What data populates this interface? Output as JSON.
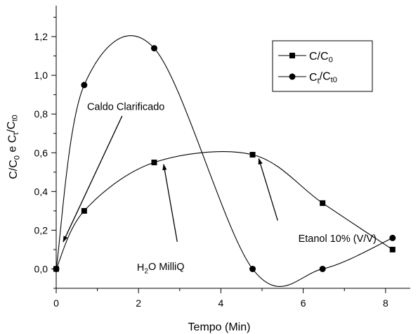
{
  "chart_data": {
    "type": "scatter",
    "xlabel": "Tempo (Min)",
    "ylabel": {
      "parts": [
        {
          "text": "C/C",
          "role": "base"
        },
        {
          "text": "0",
          "role": "sub"
        },
        {
          "text": " e C",
          "role": "base"
        },
        {
          "text": "t",
          "role": "sub"
        },
        {
          "text": "/C",
          "role": "base"
        },
        {
          "text": "t0",
          "role": "sub"
        }
      ]
    },
    "xlim": [
      0,
      8.6
    ],
    "ylim": [
      -0.1,
      1.36
    ],
    "x_ticks": [
      {
        "value": 0,
        "label": "0"
      },
      {
        "value": 2,
        "label": "2"
      },
      {
        "value": 4,
        "label": "4"
      },
      {
        "value": 6,
        "label": "6"
      },
      {
        "value": 8,
        "label": "8"
      }
    ],
    "y_ticks": [
      {
        "value": 0.0,
        "label": "0,0"
      },
      {
        "value": 0.2,
        "label": "0,2"
      },
      {
        "value": 0.4,
        "label": "0,4"
      },
      {
        "value": 0.6,
        "label": "0,6"
      },
      {
        "value": 0.8,
        "label": "0,8"
      },
      {
        "value": 1.0,
        "label": "1,0"
      },
      {
        "value": 1.2,
        "label": "1,2"
      }
    ],
    "series": [
      {
        "key": "c-c0",
        "marker": "square",
        "legend": [
          {
            "text": "C/C",
            "role": "base"
          },
          {
            "text": "0",
            "role": "sub"
          }
        ],
        "x": [
          0,
          0.68,
          2.38,
          4.77,
          6.47,
          8.17
        ],
        "y": [
          0.0,
          0.3,
          0.55,
          0.59,
          0.34,
          0.1
        ]
      },
      {
        "key": "ct-ct0",
        "marker": "circle",
        "legend": [
          {
            "text": "C",
            "role": "base"
          },
          {
            "text": "t",
            "role": "sub"
          },
          {
            "text": "/C",
            "role": "base"
          },
          {
            "text": "t0",
            "role": "sub"
          }
        ],
        "x": [
          0,
          0.68,
          2.38,
          4.77,
          6.47,
          8.17
        ],
        "y": [
          0.0,
          0.95,
          1.14,
          0.0,
          0.0,
          0.16
        ]
      }
    ],
    "annotations": [
      {
        "key": "caldo",
        "parts": [
          {
            "text": "Caldo Clarificado",
            "role": "base"
          }
        ],
        "text_at": [
          0.75,
          0.82
        ],
        "from": [
          1.6,
          0.79
        ],
        "to": [
          0.17,
          0.14
        ]
      },
      {
        "key": "h2o",
        "parts": [
          {
            "text": "H",
            "role": "base"
          },
          {
            "text": "2",
            "role": "sub"
          },
          {
            "text": "O MilliQ",
            "role": "base"
          }
        ],
        "text_at": [
          1.96,
          -0.01
        ],
        "from": [
          2.94,
          0.14
        ],
        "to": [
          2.61,
          0.54
        ]
      },
      {
        "key": "etanol",
        "parts": [
          {
            "text": "Etanol 10% (V/V)",
            "role": "base"
          }
        ],
        "text_at": [
          5.88,
          0.14
        ],
        "from": [
          5.38,
          0.25
        ],
        "to": [
          4.92,
          0.57
        ]
      }
    ],
    "legend_position": "top-right",
    "grid": false
  }
}
